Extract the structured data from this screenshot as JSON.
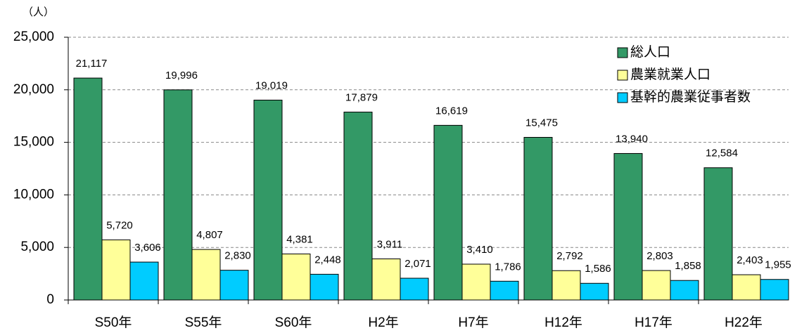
{
  "chart_data": {
    "type": "bar",
    "y_unit": "（人）",
    "categories": [
      "S50年",
      "S55年",
      "S60年",
      "H2年",
      "H7年",
      "H12年",
      "H17年",
      "H22年"
    ],
    "series": [
      {
        "name": "総人口",
        "color": "#339966",
        "values": [
          21117,
          19996,
          19019,
          17879,
          16619,
          15475,
          13940,
          12584
        ],
        "value_labels": [
          "21,117",
          "19,996",
          "19,019",
          "17,879",
          "16,619",
          "15,475",
          "13,940",
          "12,584"
        ]
      },
      {
        "name": "農業就業人口",
        "color": "#ffff99",
        "values": [
          5720,
          4807,
          4381,
          3911,
          3410,
          2792,
          2803,
          2403
        ],
        "value_labels": [
          "5,720",
          "4,807",
          "4,381",
          "3,911",
          "3,410",
          "2,792",
          "2,803",
          "2,403"
        ]
      },
      {
        "name": "基幹的農業従事者数",
        "color": "#00ccff",
        "values": [
          3606,
          2830,
          2448,
          2071,
          1786,
          1586,
          1858,
          1955
        ],
        "value_labels": [
          "3,606",
          "2,830",
          "2,448",
          "2,071",
          "1,786",
          "1,586",
          "1,858",
          "1,955"
        ]
      }
    ],
    "ylim": [
      0,
      25000
    ],
    "yticks": [
      0,
      {
        "value": 5000,
        "label": "5,000"
      },
      {
        "value": 10000,
        "label": "10,000"
      },
      {
        "value": 15000,
        "label": "15,000"
      },
      {
        "value": 20000,
        "label": "20,000"
      },
      {
        "value": 25000,
        "label": "25,000"
      }
    ],
    "grid": true,
    "legend": "upper right"
  }
}
